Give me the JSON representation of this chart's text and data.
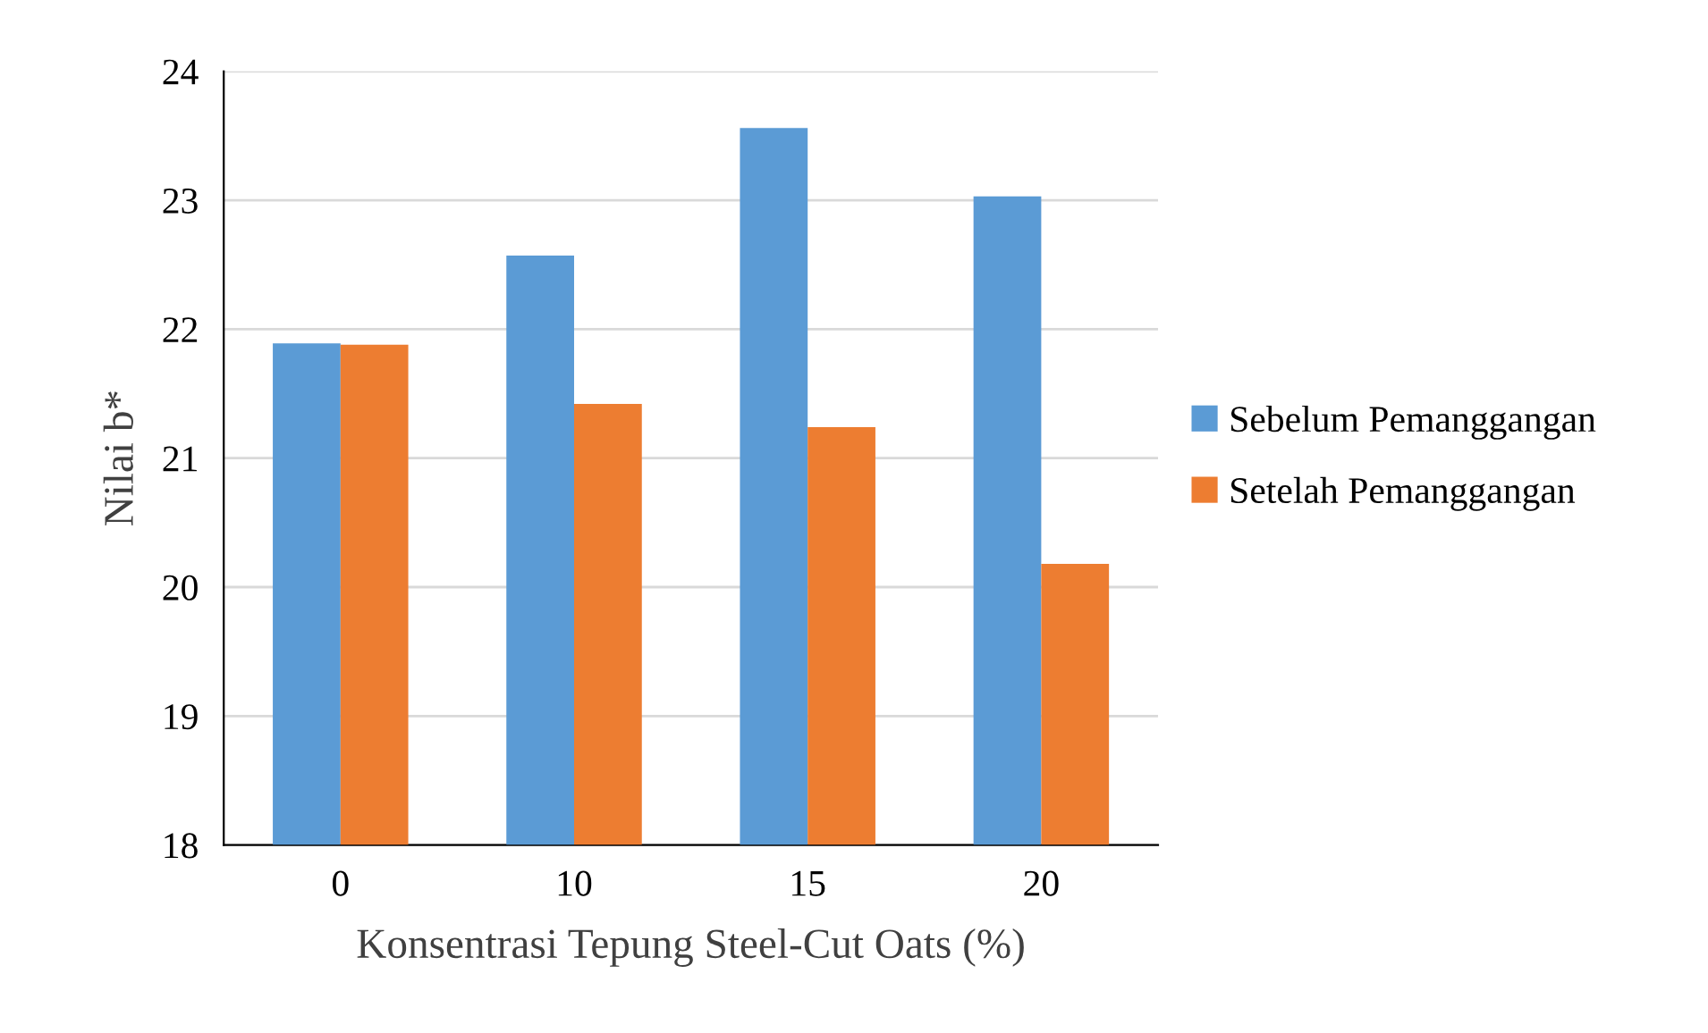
{
  "chart_data": {
    "type": "bar",
    "xlabel": "Konsentrasi Tepung Steel-Cut Oats (%)",
    "ylabel": "Nilai b*",
    "categories": [
      "0",
      "10",
      "15",
      "20"
    ],
    "series": [
      {
        "name": "Sebelum Pemanggangan",
        "color": "#5b9bd5",
        "values": [
          21.89,
          22.57,
          23.56,
          23.03
        ]
      },
      {
        "name": "Setelah Pemanggangan",
        "color": "#ed7d31",
        "values": [
          21.88,
          21.42,
          21.24,
          20.18
        ]
      }
    ],
    "ylim": [
      18,
      24
    ],
    "yticks": [
      18,
      19,
      20,
      21,
      22,
      23,
      24
    ],
    "grid": "y",
    "legend": "right"
  }
}
